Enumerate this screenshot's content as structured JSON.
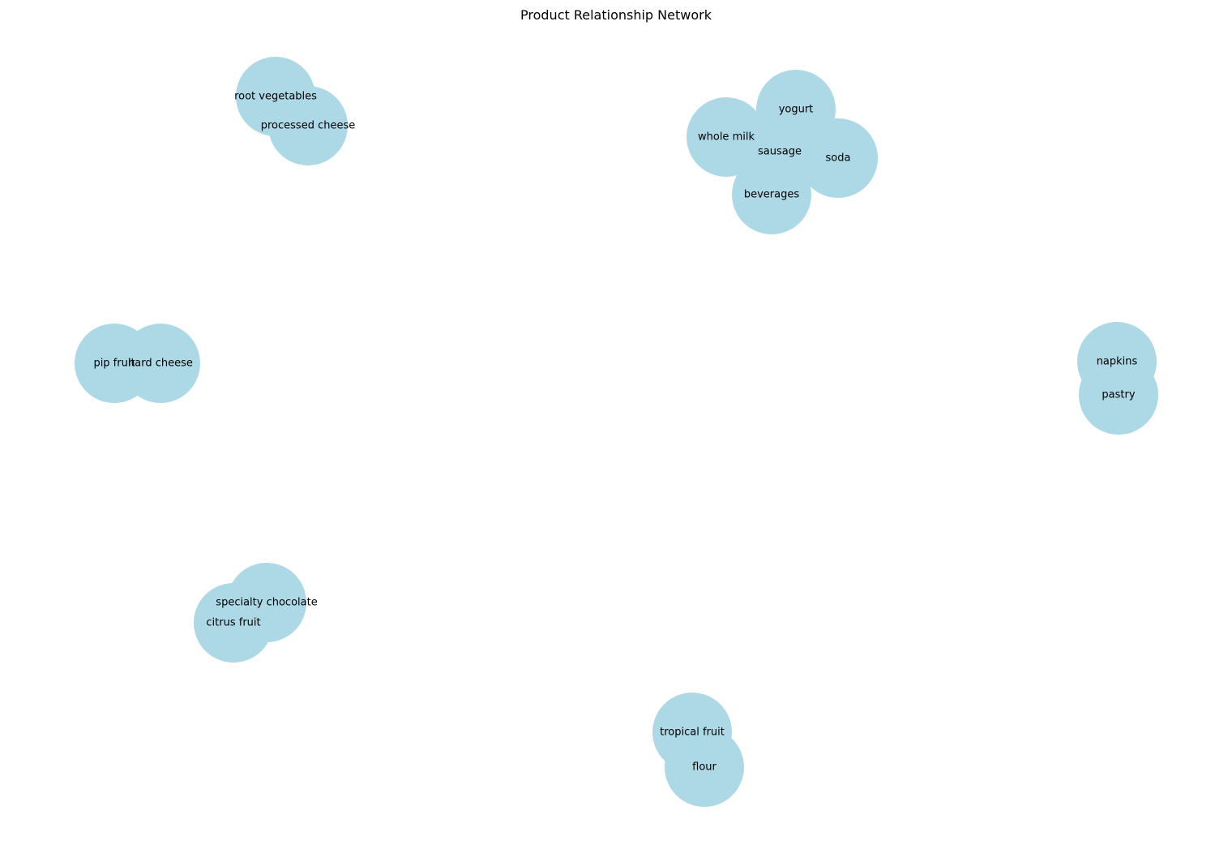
{
  "chart_data": {
    "type": "network",
    "title": "Product Relationship Network",
    "node_color": "#add8e6",
    "label_color": "#000000",
    "background": "#ffffff",
    "nodes": [
      {
        "id": "yogurt",
        "label": "yogurt"
      },
      {
        "id": "whole-milk",
        "label": "whole milk"
      },
      {
        "id": "soda",
        "label": "soda"
      },
      {
        "id": "beverages",
        "label": "beverages"
      },
      {
        "id": "sausage",
        "label": "sausage"
      },
      {
        "id": "root-vegetables",
        "label": "root vegetables"
      },
      {
        "id": "processed-cheese",
        "label": "processed cheese"
      },
      {
        "id": "pip-fruit",
        "label": "pip fruit"
      },
      {
        "id": "hard-cheese",
        "label": "hard cheese"
      },
      {
        "id": "napkins",
        "label": "napkins"
      },
      {
        "id": "pastry",
        "label": "pastry"
      },
      {
        "id": "specialty-chocolate",
        "label": "specialty chocolate"
      },
      {
        "id": "citrus-fruit",
        "label": "citrus fruit"
      },
      {
        "id": "tropical-fruit",
        "label": "tropical fruit"
      },
      {
        "id": "flour",
        "label": "flour"
      }
    ]
  }
}
